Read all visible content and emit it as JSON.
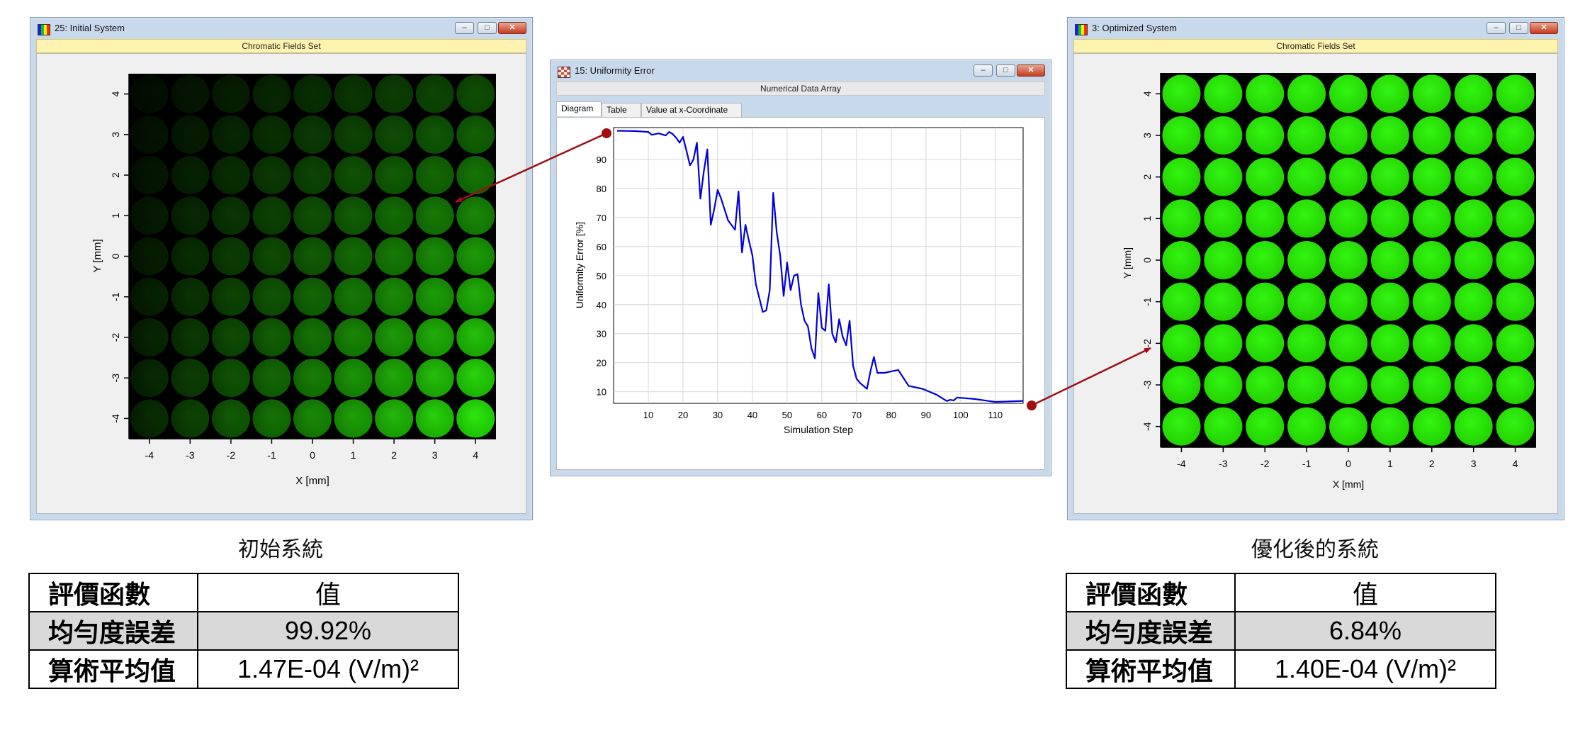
{
  "left_window": {
    "title": "25: Initial System",
    "subtitle": "Chromatic Fields Set",
    "xlabel": "X [mm]",
    "ylabel": "Y [mm]",
    "xticks": [
      "-4",
      "-3",
      "-2",
      "-1",
      "0",
      "1",
      "2",
      "3",
      "4"
    ],
    "yticks": [
      "4",
      "3",
      "2",
      "1",
      "0",
      "-1",
      "-2",
      "-3",
      "-4"
    ],
    "field_color": "#22ee00",
    "buttons": {
      "minimize": "–",
      "maximize": "□",
      "close": "✕"
    }
  },
  "middle_window": {
    "title": "15: Uniformity Error",
    "subtitle": "Numerical Data Array",
    "tabs": [
      "Diagram",
      "Table",
      "Value at x-Coordinate"
    ],
    "active_tab": "Diagram",
    "buttons": {
      "minimize": "–",
      "maximize": "□",
      "close": "✕"
    }
  },
  "right_window": {
    "title": "3: Optimized System",
    "subtitle": "Chromatic Fields Set",
    "xlabel": "X [mm]",
    "ylabel": "Y [mm]",
    "xticks": [
      "-4",
      "-3",
      "-2",
      "-1",
      "0",
      "1",
      "2",
      "3",
      "4"
    ],
    "yticks": [
      "4",
      "3",
      "2",
      "1",
      "0",
      "-1",
      "-2",
      "-3",
      "-4"
    ],
    "field_color": "#22ee00",
    "buttons": {
      "minimize": "–",
      "maximize": "□",
      "close": "✕"
    }
  },
  "chart_data": {
    "type": "line",
    "xlabel": "Simulation Step",
    "ylabel": "Uniformity Error [%]",
    "xlim": [
      0,
      118
    ],
    "ylim": [
      6,
      101
    ],
    "xticks": [
      10,
      20,
      30,
      40,
      50,
      60,
      70,
      80,
      90,
      100,
      110
    ],
    "yticks": [
      10,
      20,
      30,
      40,
      50,
      60,
      70,
      80,
      90
    ],
    "series": [
      {
        "color": "#0000dd",
        "x": [
          1,
          6,
          10,
          11,
          13,
          15,
          16,
          17,
          18,
          19,
          20,
          21,
          22,
          23,
          24,
          25,
          26,
          27,
          28,
          29,
          30,
          31,
          33,
          35,
          36,
          37,
          38,
          39,
          40,
          41,
          43,
          44,
          45,
          46,
          47,
          48,
          49,
          50,
          51,
          52,
          53,
          54,
          55,
          56,
          57,
          58,
          59,
          60,
          61,
          62,
          63,
          64,
          65,
          66,
          67,
          68,
          69,
          70,
          71,
          73,
          74,
          75,
          76,
          78,
          82,
          85,
          89,
          93,
          96,
          97,
          98,
          99,
          104,
          110,
          118
        ],
        "y": [
          99.9,
          99.8,
          99.5,
          98.5,
          99,
          98.3,
          99.5,
          98.8,
          97.5,
          95.8,
          97.8,
          93,
          88,
          90,
          95.8,
          76.5,
          86,
          93.5,
          67.5,
          73,
          79.5,
          76.5,
          69,
          65.8,
          79,
          58,
          67.5,
          62,
          57,
          47,
          37.5,
          38,
          45,
          78.5,
          65,
          57,
          43,
          54.5,
          45,
          50,
          50.5,
          40,
          34.5,
          32.5,
          25,
          21.5,
          44,
          32,
          31,
          47,
          30,
          27,
          35,
          29,
          26,
          34.5,
          19,
          14.5,
          13,
          11,
          17,
          22,
          16.5,
          16.5,
          17.5,
          12,
          11,
          9,
          6.8,
          7.2,
          7,
          8,
          7.5,
          6.5,
          6.84
        ]
      }
    ]
  },
  "captions": {
    "left": "初始系統",
    "right": "優化後的系統"
  },
  "left_table": {
    "header": {
      "k": "評價函數",
      "v": "值"
    },
    "rows": [
      {
        "k": "均勻度誤差",
        "v": "99.92%"
      },
      {
        "k": "算術平均值",
        "v": "1.47E-04 (V/m)²"
      }
    ]
  },
  "right_table": {
    "header": {
      "k": "評價函數",
      "v": "值"
    },
    "rows": [
      {
        "k": "均勻度誤差",
        "v": "6.84%"
      },
      {
        "k": "算術平均值",
        "v": "1.40E-04 (V/m)²"
      }
    ]
  },
  "arrow_color": "#a00e14"
}
